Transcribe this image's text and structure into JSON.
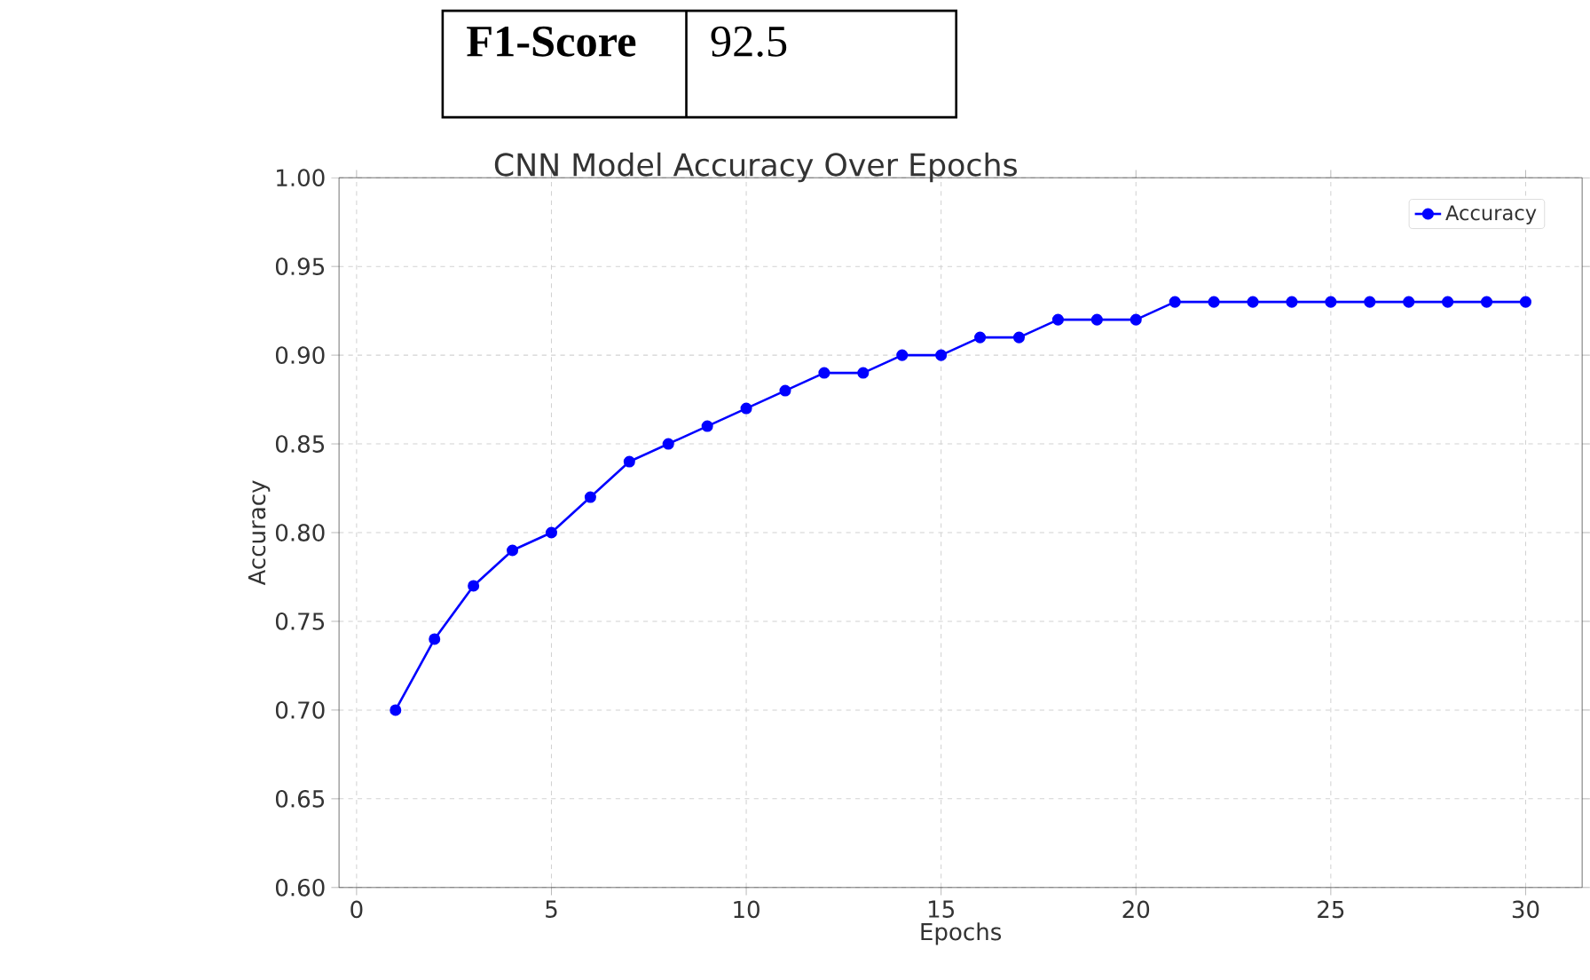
{
  "chart_data": {
    "type": "line",
    "title": "CNN Model Accuracy Over Epochs",
    "xlabel": "Epochs",
    "ylabel": "Accuracy",
    "annotations": [
      "F1-Score",
      "92.5"
    ],
    "x": [
      1,
      2,
      3,
      4,
      5,
      6,
      7,
      8,
      9,
      10,
      11,
      12,
      13,
      14,
      15,
      16,
      17,
      18,
      19,
      20,
      21,
      22,
      23,
      24,
      25,
      26,
      27,
      28,
      29,
      30
    ],
    "series": [
      {
        "name": "Accuracy",
        "color": "#0000ff",
        "values": [
          0.7,
          0.74,
          0.77,
          0.79,
          0.8,
          0.82,
          0.84,
          0.85,
          0.86,
          0.87,
          0.88,
          0.89,
          0.89,
          0.9,
          0.9,
          0.91,
          0.91,
          0.92,
          0.92,
          0.92,
          0.93,
          0.93,
          0.93,
          0.93,
          0.93,
          0.93,
          0.93,
          0.93,
          0.93,
          0.93
        ]
      }
    ],
    "xlim": [
      -0.45,
      31.45
    ],
    "ylim": [
      0.6,
      1.0
    ],
    "xticks": [
      0,
      5,
      10,
      15,
      20,
      25,
      30
    ],
    "yticks": [
      {
        "value": 0.6,
        "label": "0.60"
      },
      {
        "value": 0.65,
        "label": "0.65"
      },
      {
        "value": 0.7,
        "label": "0.70"
      },
      {
        "value": 0.75,
        "label": "0.75"
      },
      {
        "value": 0.8,
        "label": "0.80"
      },
      {
        "value": 0.85,
        "label": "0.85"
      },
      {
        "value": 0.9,
        "label": "0.90"
      },
      {
        "value": 0.95,
        "label": "0.95"
      },
      {
        "value": 1.0,
        "label": "1.00"
      }
    ],
    "grid": true,
    "legend": "top right",
    "marker": "circle",
    "line_style": "solid"
  }
}
